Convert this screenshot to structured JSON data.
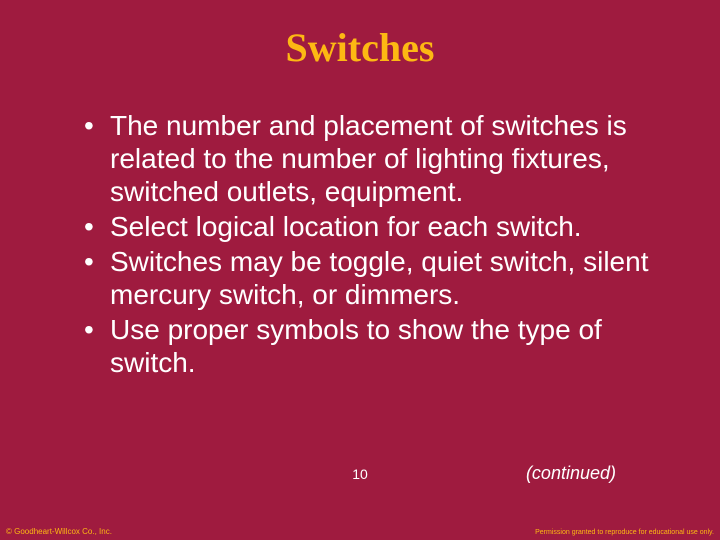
{
  "colors": {
    "background": "#9f1b3f",
    "title": "#fdb813",
    "body_text": "#ffffff",
    "footer_text": "#fdb813"
  },
  "typography": {
    "title_fontsize": 40,
    "body_fontsize": 28,
    "pagenum_fontsize": 14,
    "continued_fontsize": 18,
    "footer_fontsize": 8
  },
  "slide": {
    "title": "Switches",
    "bullets": [
      "The number and placement of switches is related to the number of lighting fixtures, switched outlets, equipment.",
      "Select logical location for each switch.",
      "Switches may be toggle, quiet switch, silent mercury switch, or dimmers.",
      "Use proper symbols to show the type of switch."
    ],
    "page_number": "10",
    "continued": "(continued)"
  },
  "footer": {
    "left": "© Goodheart-Willcox Co., Inc.",
    "right": "Permission granted to reproduce for educational use only."
  }
}
